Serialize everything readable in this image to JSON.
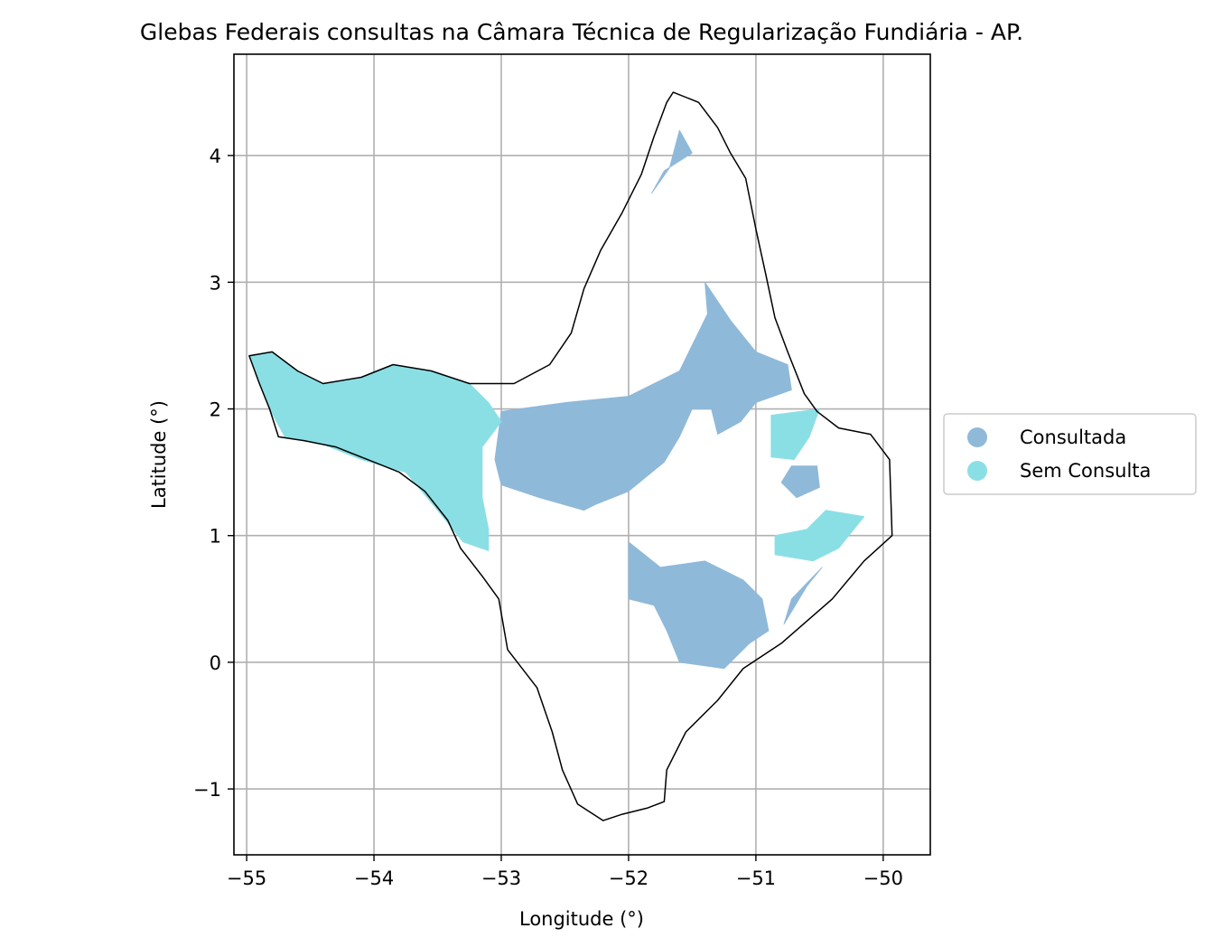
{
  "chart_data": {
    "type": "map",
    "title": "Glebas Federais consultas na Câmara Técnica de Regularização Fundiária - AP.",
    "xlabel": "Longitude (°)",
    "ylabel": "Latitude (°)",
    "xlim": [
      -55.1,
      -49.63
    ],
    "ylim": [
      -1.52,
      4.8
    ],
    "x_ticks": [
      -55,
      -54,
      -53,
      -52,
      -51,
      -50
    ],
    "x_tick_labels": [
      "−55",
      "−54",
      "−53",
      "−52",
      "−51",
      "−50"
    ],
    "y_ticks": [
      -1,
      0,
      1,
      2,
      3,
      4
    ],
    "y_tick_labels": [
      "−1",
      "0",
      "1",
      "2",
      "3",
      "4"
    ],
    "grid": true,
    "legend_position": "right",
    "legend": [
      {
        "label": "Consultada",
        "color": "#8fb9d9"
      },
      {
        "label": "Sem Consulta",
        "color": "#8adfe5"
      }
    ],
    "colors": {
      "consultada": "#8fb9d9",
      "sem_consulta": "#8adfe5",
      "outline": "#000000",
      "grid": "#b0b0b0"
    },
    "state_outline": [
      [
        -51.65,
        4.5
      ],
      [
        -51.45,
        4.42
      ],
      [
        -51.3,
        4.22
      ],
      [
        -51.2,
        4.02
      ],
      [
        -51.08,
        3.82
      ],
      [
        -51.0,
        3.42
      ],
      [
        -50.92,
        3.05
      ],
      [
        -50.85,
        2.72
      ],
      [
        -50.75,
        2.45
      ],
      [
        -50.62,
        2.12
      ],
      [
        -50.52,
        1.98
      ],
      [
        -50.35,
        1.85
      ],
      [
        -50.1,
        1.8
      ],
      [
        -49.95,
        1.6
      ],
      [
        -49.93,
        1.0
      ],
      [
        -50.15,
        0.8
      ],
      [
        -50.4,
        0.5
      ],
      [
        -50.8,
        0.15
      ],
      [
        -51.1,
        -0.05
      ],
      [
        -51.3,
        -0.3
      ],
      [
        -51.55,
        -0.55
      ],
      [
        -51.7,
        -0.85
      ],
      [
        -51.72,
        -1.1
      ],
      [
        -51.85,
        -1.15
      ],
      [
        -52.05,
        -1.2
      ],
      [
        -52.2,
        -1.25
      ],
      [
        -52.4,
        -1.12
      ],
      [
        -52.52,
        -0.85
      ],
      [
        -52.6,
        -0.55
      ],
      [
        -52.72,
        -0.2
      ],
      [
        -52.95,
        0.1
      ],
      [
        -53.02,
        0.5
      ],
      [
        -53.15,
        0.68
      ],
      [
        -53.32,
        0.9
      ],
      [
        -53.42,
        1.12
      ],
      [
        -53.6,
        1.35
      ],
      [
        -53.8,
        1.5
      ],
      [
        -54.05,
        1.6
      ],
      [
        -54.3,
        1.7
      ],
      [
        -54.55,
        1.75
      ],
      [
        -54.75,
        1.78
      ],
      [
        -54.82,
        2.0
      ],
      [
        -54.9,
        2.2
      ],
      [
        -54.98,
        2.42
      ],
      [
        -54.8,
        2.45
      ],
      [
        -54.6,
        2.3
      ],
      [
        -54.4,
        2.2
      ],
      [
        -54.1,
        2.25
      ],
      [
        -53.85,
        2.35
      ],
      [
        -53.55,
        2.3
      ],
      [
        -53.25,
        2.2
      ],
      [
        -52.9,
        2.2
      ],
      [
        -52.62,
        2.35
      ],
      [
        -52.45,
        2.6
      ],
      [
        -52.35,
        2.95
      ],
      [
        -52.22,
        3.25
      ],
      [
        -52.05,
        3.55
      ],
      [
        -51.9,
        3.85
      ],
      [
        -51.8,
        4.15
      ],
      [
        -51.7,
        4.42
      ]
    ],
    "series": [
      {
        "name": "Consultada",
        "polygons": [
          [
            [
              -51.6,
              4.2
            ],
            [
              -51.5,
              4.02
            ],
            [
              -51.72,
              3.88
            ],
            [
              -51.82,
              3.7
            ],
            [
              -51.68,
              3.9
            ]
          ],
          [
            [
              -53.0,
              1.98
            ],
            [
              -52.5,
              2.05
            ],
            [
              -52.0,
              2.1
            ],
            [
              -51.6,
              2.3
            ],
            [
              -51.38,
              2.75
            ],
            [
              -51.4,
              3.0
            ],
            [
              -51.2,
              2.7
            ],
            [
              -51.0,
              2.45
            ],
            [
              -50.75,
              2.35
            ],
            [
              -50.72,
              2.15
            ],
            [
              -51.0,
              2.05
            ],
            [
              -51.12,
              1.9
            ],
            [
              -51.3,
              1.8
            ],
            [
              -51.35,
              2.0
            ],
            [
              -51.5,
              2.0
            ],
            [
              -51.6,
              1.78
            ],
            [
              -51.72,
              1.58
            ],
            [
              -52.0,
              1.35
            ],
            [
              -52.25,
              1.25
            ],
            [
              -52.35,
              1.2
            ],
            [
              -52.7,
              1.3
            ],
            [
              -53.0,
              1.4
            ],
            [
              -53.05,
              1.6
            ]
          ],
          [
            [
              -50.72,
              1.55
            ],
            [
              -50.52,
              1.55
            ],
            [
              -50.5,
              1.38
            ],
            [
              -50.68,
              1.3
            ],
            [
              -50.8,
              1.42
            ]
          ],
          [
            [
              -50.48,
              0.75
            ],
            [
              -50.6,
              0.6
            ],
            [
              -50.78,
              0.3
            ],
            [
              -50.72,
              0.5
            ]
          ],
          [
            [
              -52.0,
              0.95
            ],
            [
              -51.75,
              0.75
            ],
            [
              -51.4,
              0.8
            ],
            [
              -51.1,
              0.65
            ],
            [
              -50.95,
              0.5
            ],
            [
              -50.9,
              0.25
            ],
            [
              -51.05,
              0.15
            ],
            [
              -51.25,
              -0.05
            ],
            [
              -51.6,
              0.0
            ],
            [
              -51.7,
              0.25
            ],
            [
              -51.8,
              0.45
            ],
            [
              -52.0,
              0.5
            ]
          ]
        ]
      },
      {
        "name": "Sem Consulta",
        "polygons": [
          [
            [
              -54.98,
              2.42
            ],
            [
              -54.8,
              2.45
            ],
            [
              -54.6,
              2.3
            ],
            [
              -54.4,
              2.2
            ],
            [
              -54.1,
              2.25
            ],
            [
              -53.85,
              2.35
            ],
            [
              -53.55,
              2.3
            ],
            [
              -53.25,
              2.2
            ],
            [
              -53.1,
              2.05
            ],
            [
              -53.0,
              1.9
            ],
            [
              -53.15,
              1.7
            ],
            [
              -53.15,
              1.3
            ],
            [
              -53.1,
              1.05
            ],
            [
              -53.1,
              0.88
            ],
            [
              -53.3,
              0.95
            ],
            [
              -53.5,
              1.2
            ],
            [
              -53.75,
              1.5
            ],
            [
              -54.1,
              1.6
            ],
            [
              -54.4,
              1.72
            ],
            [
              -54.7,
              1.78
            ],
            [
              -54.82,
              2.0
            ],
            [
              -54.9,
              2.2
            ]
          ],
          [
            [
              -50.88,
              1.95
            ],
            [
              -50.5,
              2.0
            ],
            [
              -50.58,
              1.78
            ],
            [
              -50.7,
              1.6
            ],
            [
              -50.88,
              1.62
            ]
          ],
          [
            [
              -50.85,
              1.0
            ],
            [
              -50.6,
              1.05
            ],
            [
              -50.45,
              1.2
            ],
            [
              -50.15,
              1.15
            ],
            [
              -50.35,
              0.9
            ],
            [
              -50.55,
              0.8
            ],
            [
              -50.85,
              0.85
            ]
          ]
        ]
      }
    ]
  }
}
